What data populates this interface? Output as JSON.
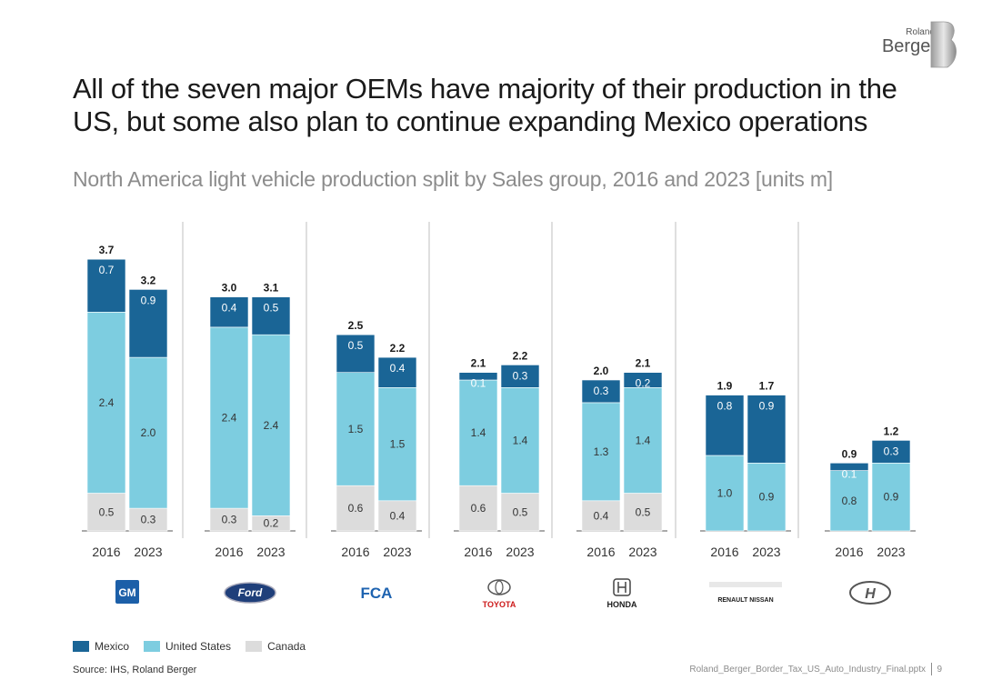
{
  "brand": {
    "line1": "Roland",
    "line2": "Berger"
  },
  "title": "All of the seven major OEMs have majority of their production in the US, but some also plan to continue expanding Mexico operations",
  "subtitle": "North America light vehicle production split by Sales group, 2016 and 2023 [units m]",
  "colors": {
    "mexico": "#1a6596",
    "us": "#7dcde0",
    "canada": "#dcdcdc"
  },
  "legend": [
    "Mexico",
    "United States",
    "Canada"
  ],
  "source": "Source: IHS, Roland Berger",
  "footer_file": "Roland_Berger_Border_Tax_US_Auto_Industry_Final.pptx",
  "page_number": "9",
  "chart_data": {
    "type": "bar",
    "stacked": true,
    "unit": "units m",
    "series_order": [
      "Canada",
      "United States",
      "Mexico"
    ],
    "groups": [
      {
        "oem": "GM",
        "logo": "GM",
        "bars": [
          {
            "year": "2016",
            "canada": "0.5",
            "us": "2.4",
            "mexico": "0.7",
            "total": "3.7"
          },
          {
            "year": "2023",
            "canada": "0.3",
            "us": "2.0",
            "mexico": "0.9",
            "total": "3.2"
          }
        ]
      },
      {
        "oem": "Ford",
        "logo": "Ford",
        "bars": [
          {
            "year": "2016",
            "canada": "0.3",
            "us": "2.4",
            "mexico": "0.4",
            "total": "3.0"
          },
          {
            "year": "2023",
            "canada": "0.2",
            "us": "2.4",
            "mexico": "0.5",
            "total": "3.1"
          }
        ]
      },
      {
        "oem": "FCA",
        "logo": "FCA",
        "bars": [
          {
            "year": "2016",
            "canada": "0.6",
            "us": "1.5",
            "mexico": "0.5",
            "total": "2.5"
          },
          {
            "year": "2023",
            "canada": "0.4",
            "us": "1.5",
            "mexico": "0.4",
            "total": "2.2"
          }
        ]
      },
      {
        "oem": "Toyota",
        "logo": "TOYOTA",
        "bars": [
          {
            "year": "2016",
            "canada": "0.6",
            "us": "1.4",
            "mexico": "0.1",
            "total": "2.1"
          },
          {
            "year": "2023",
            "canada": "0.5",
            "us": "1.4",
            "mexico": "0.3",
            "total": "2.2"
          }
        ]
      },
      {
        "oem": "Honda",
        "logo": "HONDA",
        "bars": [
          {
            "year": "2016",
            "canada": "0.4",
            "us": "1.3",
            "mexico": "0.3",
            "total": "2.0"
          },
          {
            "year": "2023",
            "canada": "0.5",
            "us": "1.4",
            "mexico": "0.2",
            "total": "2.1"
          }
        ]
      },
      {
        "oem": "Renault Nissan",
        "logo": "RENAULT NISSAN",
        "bars": [
          {
            "year": "2016",
            "canada": "0.0",
            "us": "1.0",
            "mexico": "0.8",
            "total": "1.9"
          },
          {
            "year": "2023",
            "canada": "0.0",
            "us": "0.9",
            "mexico": "0.9",
            "total": "1.7"
          }
        ]
      },
      {
        "oem": "Hyundai",
        "logo": "Hyundai",
        "bars": [
          {
            "year": "2016",
            "canada": "0.0",
            "us": "0.8",
            "mexico": "0.1",
            "total": "0.9"
          },
          {
            "year": "2023",
            "canada": "0.0",
            "us": "0.9",
            "mexico": "0.3",
            "total": "1.2"
          }
        ]
      }
    ]
  }
}
